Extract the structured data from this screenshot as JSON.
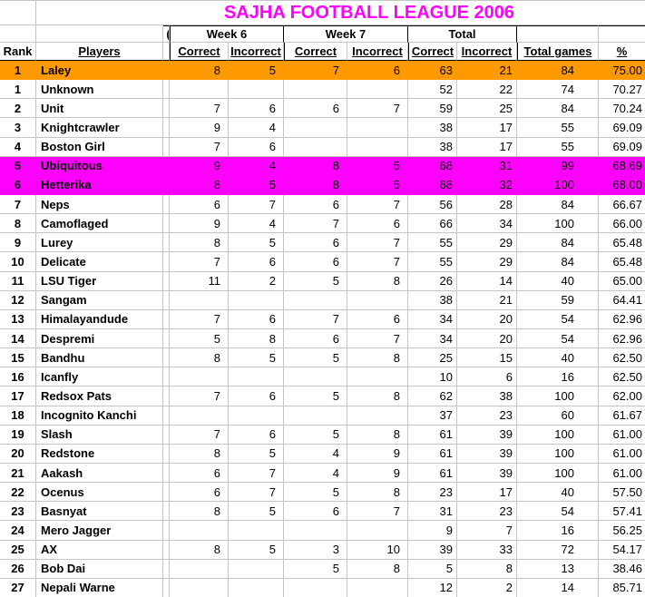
{
  "title": "SAJHA FOOTBALL LEAGUE 2006",
  "colors": {
    "title_text": "#ff00ff",
    "orange_row": "#ff9900",
    "magenta_row": "#ff00ff",
    "gridline": "#c6c6c6"
  },
  "header": {
    "groups": {
      "week6": "Week 6",
      "week7": "Week 7",
      "total": "Total"
    },
    "columns": {
      "rank": "Rank",
      "players": "Players",
      "correct": "Correct",
      "incorrect": "Incorrect",
      "total_games": "Total games",
      "percent": "%"
    },
    "clipped_fragments": {
      "group_row": "(",
      "header_row": "! !"
    }
  },
  "rows": [
    {
      "rank": "1",
      "player": "Laley",
      "w6_correct": "8",
      "w6_incorrect": "5",
      "w7_correct": "7",
      "w7_incorrect": "6",
      "total_correct": "63",
      "total_incorrect": "21",
      "total_games": "84",
      "percent": "75.00",
      "highlight": "orange"
    },
    {
      "rank": "1",
      "player": "Unknown",
      "w6_correct": "",
      "w6_incorrect": "",
      "w7_correct": "",
      "w7_incorrect": "",
      "total_correct": "52",
      "total_incorrect": "22",
      "total_games": "74",
      "percent": "70.27",
      "highlight": ""
    },
    {
      "rank": "2",
      "player": "Unit",
      "w6_correct": "7",
      "w6_incorrect": "6",
      "w7_correct": "6",
      "w7_incorrect": "7",
      "total_correct": "59",
      "total_incorrect": "25",
      "total_games": "84",
      "percent": "70.24",
      "highlight": ""
    },
    {
      "rank": "3",
      "player": "Knightcrawler",
      "w6_correct": "9",
      "w6_incorrect": "4",
      "w7_correct": "",
      "w7_incorrect": "",
      "total_correct": "38",
      "total_incorrect": "17",
      "total_games": "55",
      "percent": "69.09",
      "highlight": ""
    },
    {
      "rank": "4",
      "player": "Boston Girl",
      "w6_correct": "7",
      "w6_incorrect": "6",
      "w7_correct": "",
      "w7_incorrect": "",
      "total_correct": "38",
      "total_incorrect": "17",
      "total_games": "55",
      "percent": "69.09",
      "highlight": ""
    },
    {
      "rank": "5",
      "player": "Ubiquitous",
      "w6_correct": "9",
      "w6_incorrect": "4",
      "w7_correct": "8",
      "w7_incorrect": "5",
      "total_correct": "68",
      "total_incorrect": "31",
      "total_games": "99",
      "percent": "68.69",
      "highlight": "magenta"
    },
    {
      "rank": "6",
      "player": "Hetterika",
      "w6_correct": "8",
      "w6_incorrect": "5",
      "w7_correct": "8",
      "w7_incorrect": "5",
      "total_correct": "68",
      "total_incorrect": "32",
      "total_games": "100",
      "percent": "68.00",
      "highlight": "magenta"
    },
    {
      "rank": "7",
      "player": "Neps",
      "w6_correct": "6",
      "w6_incorrect": "7",
      "w7_correct": "6",
      "w7_incorrect": "7",
      "total_correct": "56",
      "total_incorrect": "28",
      "total_games": "84",
      "percent": "66.67",
      "highlight": ""
    },
    {
      "rank": "8",
      "player": "Camoflaged",
      "w6_correct": "9",
      "w6_incorrect": "4",
      "w7_correct": "7",
      "w7_incorrect": "6",
      "total_correct": "66",
      "total_incorrect": "34",
      "total_games": "100",
      "percent": "66.00",
      "highlight": ""
    },
    {
      "rank": "9",
      "player": "Lurey",
      "w6_correct": "8",
      "w6_incorrect": "5",
      "w7_correct": "6",
      "w7_incorrect": "7",
      "total_correct": "55",
      "total_incorrect": "29",
      "total_games": "84",
      "percent": "65.48",
      "highlight": ""
    },
    {
      "rank": "10",
      "player": "Delicate",
      "w6_correct": "7",
      "w6_incorrect": "6",
      "w7_correct": "6",
      "w7_incorrect": "7",
      "total_correct": "55",
      "total_incorrect": "29",
      "total_games": "84",
      "percent": "65.48",
      "highlight": ""
    },
    {
      "rank": "11",
      "player": "LSU Tiger",
      "w6_correct": "11",
      "w6_incorrect": "2",
      "w7_correct": "5",
      "w7_incorrect": "8",
      "total_correct": "26",
      "total_incorrect": "14",
      "total_games": "40",
      "percent": "65.00",
      "highlight": ""
    },
    {
      "rank": "12",
      "player": "Sangam",
      "w6_correct": "",
      "w6_incorrect": "",
      "w7_correct": "",
      "w7_incorrect": "",
      "total_correct": "38",
      "total_incorrect": "21",
      "total_games": "59",
      "percent": "64.41",
      "highlight": ""
    },
    {
      "rank": "13",
      "player": "Himalayandude",
      "w6_correct": "7",
      "w6_incorrect": "6",
      "w7_correct": "7",
      "w7_incorrect": "6",
      "total_correct": "34",
      "total_incorrect": "20",
      "total_games": "54",
      "percent": "62.96",
      "highlight": ""
    },
    {
      "rank": "14",
      "player": "Despremi",
      "w6_correct": "5",
      "w6_incorrect": "8",
      "w7_correct": "6",
      "w7_incorrect": "7",
      "total_correct": "34",
      "total_incorrect": "20",
      "total_games": "54",
      "percent": "62.96",
      "highlight": ""
    },
    {
      "rank": "15",
      "player": "Bandhu",
      "w6_correct": "8",
      "w6_incorrect": "5",
      "w7_correct": "5",
      "w7_incorrect": "8",
      "total_correct": "25",
      "total_incorrect": "15",
      "total_games": "40",
      "percent": "62.50",
      "highlight": ""
    },
    {
      "rank": "16",
      "player": "Icanfly",
      "w6_correct": "",
      "w6_incorrect": "",
      "w7_correct": "",
      "w7_incorrect": "",
      "total_correct": "10",
      "total_incorrect": "6",
      "total_games": "16",
      "percent": "62.50",
      "highlight": ""
    },
    {
      "rank": "17",
      "player": "Redsox Pats",
      "w6_correct": "7",
      "w6_incorrect": "6",
      "w7_correct": "5",
      "w7_incorrect": "8",
      "total_correct": "62",
      "total_incorrect": "38",
      "total_games": "100",
      "percent": "62.00",
      "highlight": ""
    },
    {
      "rank": "18",
      "player": "Incognito Kanchi",
      "w6_correct": "",
      "w6_incorrect": "",
      "w7_correct": "",
      "w7_incorrect": "",
      "total_correct": "37",
      "total_incorrect": "23",
      "total_games": "60",
      "percent": "61.67",
      "highlight": ""
    },
    {
      "rank": "19",
      "player": "Slash",
      "w6_correct": "7",
      "w6_incorrect": "6",
      "w7_correct": "5",
      "w7_incorrect": "8",
      "total_correct": "61",
      "total_incorrect": "39",
      "total_games": "100",
      "percent": "61.00",
      "highlight": ""
    },
    {
      "rank": "20",
      "player": "Redstone",
      "w6_correct": "8",
      "w6_incorrect": "5",
      "w7_correct": "4",
      "w7_incorrect": "9",
      "total_correct": "61",
      "total_incorrect": "39",
      "total_games": "100",
      "percent": "61.00",
      "highlight": ""
    },
    {
      "rank": "21",
      "player": "Aakash",
      "w6_correct": "6",
      "w6_incorrect": "7",
      "w7_correct": "4",
      "w7_incorrect": "9",
      "total_correct": "61",
      "total_incorrect": "39",
      "total_games": "100",
      "percent": "61.00",
      "highlight": ""
    },
    {
      "rank": "22",
      "player": "Ocenus",
      "w6_correct": "6",
      "w6_incorrect": "7",
      "w7_correct": "5",
      "w7_incorrect": "8",
      "total_correct": "23",
      "total_incorrect": "17",
      "total_games": "40",
      "percent": "57.50",
      "highlight": ""
    },
    {
      "rank": "23",
      "player": "Basnyat",
      "w6_correct": "8",
      "w6_incorrect": "5",
      "w7_correct": "6",
      "w7_incorrect": "7",
      "total_correct": "31",
      "total_incorrect": "23",
      "total_games": "54",
      "percent": "57.41",
      "highlight": ""
    },
    {
      "rank": "24",
      "player": "Mero Jagger",
      "w6_correct": "",
      "w6_incorrect": "",
      "w7_correct": "",
      "w7_incorrect": "",
      "total_correct": "9",
      "total_incorrect": "7",
      "total_games": "16",
      "percent": "56.25",
      "highlight": ""
    },
    {
      "rank": "25",
      "player": "AX",
      "w6_correct": "8",
      "w6_incorrect": "5",
      "w7_correct": "3",
      "w7_incorrect": "10",
      "total_correct": "39",
      "total_incorrect": "33",
      "total_games": "72",
      "percent": "54.17",
      "highlight": ""
    },
    {
      "rank": "26",
      "player": "Bob Dai",
      "w6_correct": "",
      "w6_incorrect": "",
      "w7_correct": "5",
      "w7_incorrect": "8",
      "total_correct": "5",
      "total_incorrect": "8",
      "total_games": "13",
      "percent": "38.46",
      "highlight": ""
    },
    {
      "rank": "27",
      "player": "Nepali Warne",
      "w6_correct": "",
      "w6_incorrect": "",
      "w7_correct": "",
      "w7_incorrect": "",
      "total_correct": "12",
      "total_incorrect": "2",
      "total_games": "14",
      "percent": "85.71",
      "highlight": ""
    }
  ]
}
